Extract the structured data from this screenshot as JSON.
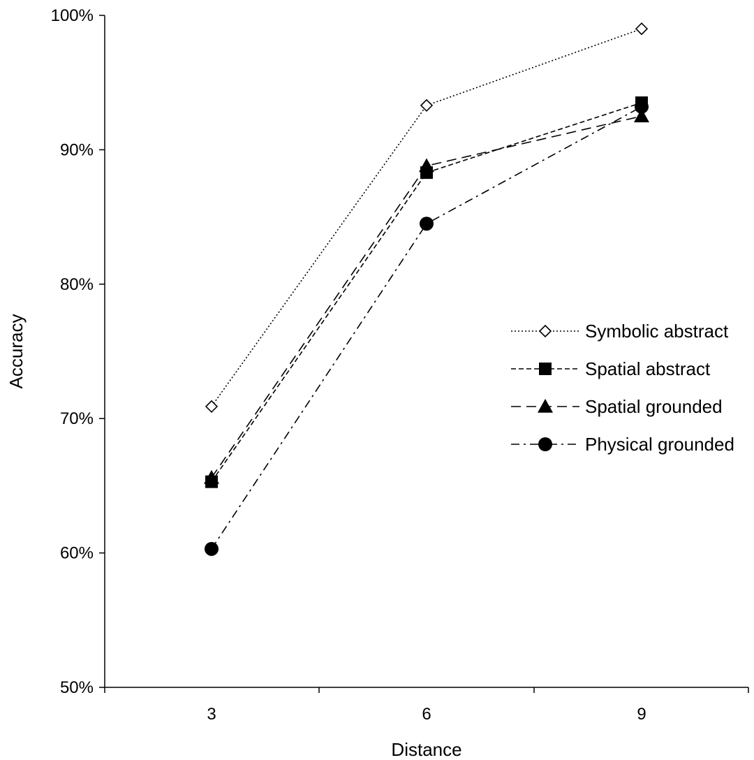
{
  "chart_data": {
    "type": "line",
    "title": "",
    "xlabel": "Distance",
    "ylabel": "Accuracy",
    "categories": [
      "3",
      "6",
      "9"
    ],
    "ylim": [
      0.5,
      1.0
    ],
    "yticks": [
      0.5,
      0.6,
      0.7,
      0.8,
      0.9,
      1.0
    ],
    "ytick_labels": [
      "50%",
      "60%",
      "70%",
      "80%",
      "90%",
      "100%"
    ],
    "grid": false,
    "legend_position": "right",
    "series": [
      {
        "name": "Symbolic abstract",
        "values": [
          0.709,
          0.933,
          0.99
        ],
        "marker": "diamond-open",
        "dash": "dotted",
        "color": "#000000"
      },
      {
        "name": "Spatial abstract",
        "values": [
          0.653,
          0.883,
          0.935
        ],
        "marker": "square",
        "dash": "short-dash",
        "color": "#000000"
      },
      {
        "name": "Spatial grounded",
        "values": [
          0.656,
          0.888,
          0.925
        ],
        "marker": "triangle",
        "dash": "long-dash",
        "color": "#000000"
      },
      {
        "name": "Physical grounded",
        "values": [
          0.603,
          0.845,
          0.932
        ],
        "marker": "circle",
        "dash": "dash-dot",
        "color": "#000000"
      }
    ]
  }
}
